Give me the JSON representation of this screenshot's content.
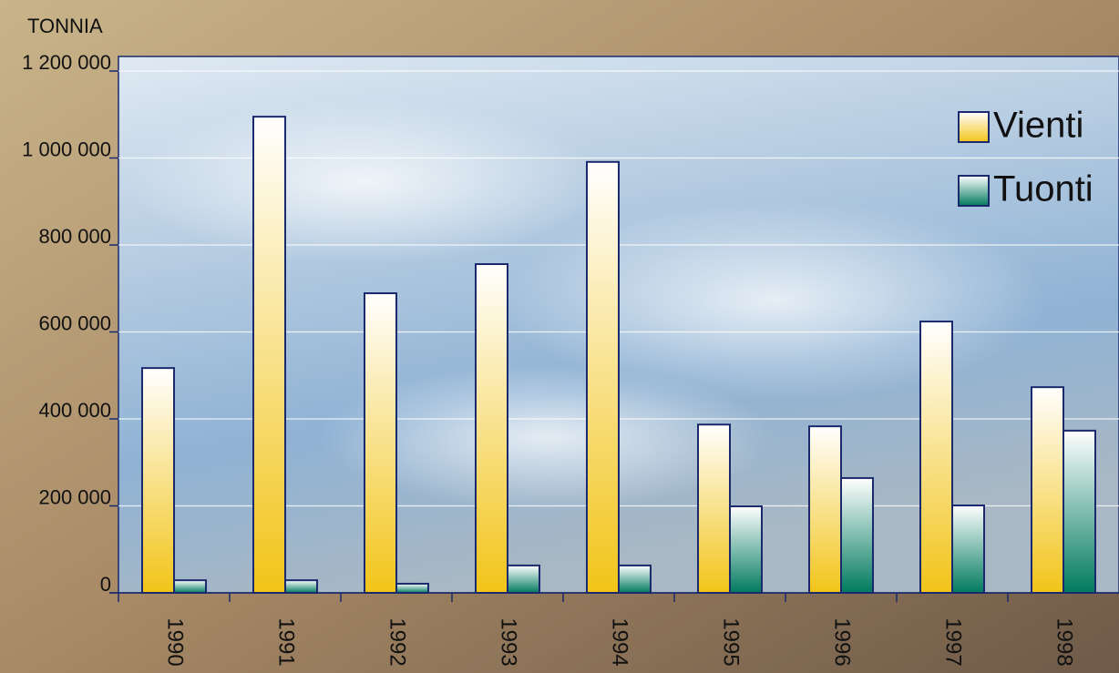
{
  "chart_data": {
    "type": "bar",
    "y_label": "TONNIA",
    "categories": [
      "1990",
      "1991",
      "1992",
      "1993",
      "1994",
      "1995",
      "1996",
      "1997",
      "1998"
    ],
    "series": [
      {
        "name": "Vienti",
        "color": "#f2c418",
        "values": [
          517000,
          1095000,
          689000,
          756000,
          991000,
          387000,
          383000,
          624000,
          473000
        ]
      },
      {
        "name": "Tuonti",
        "color": "#007a5e",
        "values": [
          29000,
          29000,
          21000,
          63000,
          63000,
          199000,
          264000,
          201000,
          373000
        ]
      }
    ],
    "ylim": [
      0,
      1200000
    ],
    "yticks": [
      0,
      {
        "value": 200000,
        "label": "200 000"
      },
      {
        "value": 400000,
        "label": "400 000"
      },
      {
        "value": 600000,
        "label": "600 000"
      },
      {
        "value": 800000,
        "label": "800 000"
      },
      {
        "value": 1000000,
        "label": "1 000 000"
      },
      {
        "value": 1200000,
        "label": "1 200 000"
      }
    ],
    "grid": true,
    "legend": "top-right"
  }
}
